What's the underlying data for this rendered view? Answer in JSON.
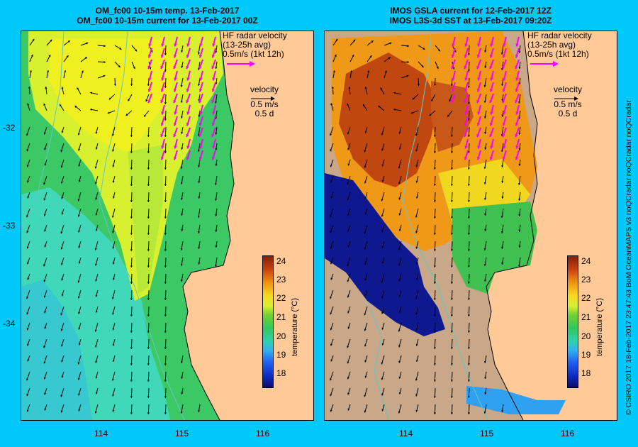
{
  "left_panel": {
    "title_line1": "OM_fc00 10-15m temp. 13-Feb-2017",
    "title_line2": "OM_fc00 10-15m current for 13-Feb-2017 00Z"
  },
  "right_panel": {
    "title_line1": "IMOS GSLA current for 12-Feb-2017 12Z",
    "title_line2": "IMOS L3S-3d SST at 13-Feb-2017 09:20Z"
  },
  "hf_legend": {
    "line1": "HF radar velocity",
    "line2": "(13-25h avg)",
    "line3": "0.5m/s (1kt 12h)",
    "color": "#ff00ff"
  },
  "velocity_legend": {
    "line1": "velocity",
    "line2": "0.5 m/s",
    "line3": "0.5 d"
  },
  "colorbar": {
    "label": "temperature (°C)",
    "ticks": [
      "24",
      "23",
      "22",
      "21",
      "20",
      "19",
      "18"
    ]
  },
  "axes": {
    "y_ticks": [
      "-32",
      "-33",
      "-34"
    ],
    "x_ticks": [
      "114",
      "115",
      "116"
    ]
  },
  "credit": "© CSIRO 2017   18-Feb-2017 23:47:43 BoM OceanMAPS v3 noQCradar noQCradar noQCradar",
  "colors": {
    "background": "#00c8f8",
    "land": "#ffca98",
    "cloud_mask": "#c8a888",
    "arrow": "#000000"
  }
}
